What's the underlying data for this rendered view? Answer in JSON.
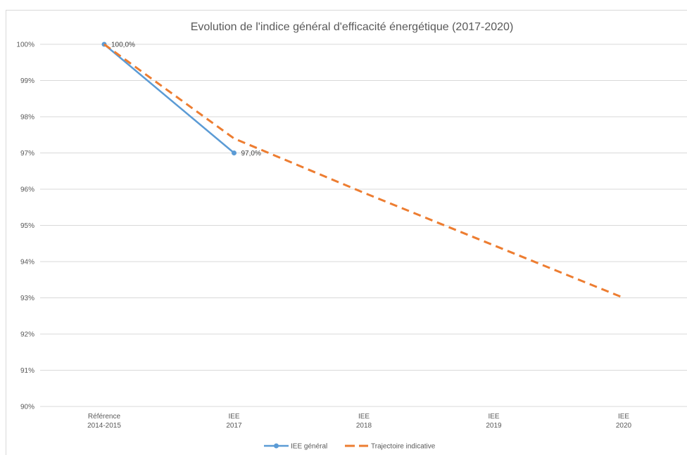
{
  "chart_data": {
    "type": "line",
    "title": "Evolution de l'indice général d'efficacité énergétique (2017-2020)",
    "categories": [
      [
        "Référence",
        "2014-2015"
      ],
      [
        "IEE",
        "2017"
      ],
      [
        "IEE",
        "2018"
      ],
      [
        "IEE",
        "2019"
      ],
      [
        "IEE",
        "2020"
      ]
    ],
    "ylim": [
      90,
      100
    ],
    "yticks": [
      {
        "value": 100,
        "label": "100%"
      },
      {
        "value": 99,
        "label": "99%"
      },
      {
        "value": 98,
        "label": "98%"
      },
      {
        "value": 97,
        "label": "97%"
      },
      {
        "value": 96,
        "label": "96%"
      },
      {
        "value": 95,
        "label": "95%"
      },
      {
        "value": 94,
        "label": "94%"
      },
      {
        "value": 93,
        "label": "93%"
      },
      {
        "value": 92,
        "label": "92%"
      },
      {
        "value": 91,
        "label": "91%"
      },
      {
        "value": 90,
        "label": "90%"
      }
    ],
    "grid": true,
    "legend_position": "bottom",
    "series": [
      {
        "name": "IEE général",
        "color": "#5b9bd5",
        "style": "solid-markers",
        "values": [
          100,
          97,
          null,
          null,
          null
        ],
        "labels": [
          "100,0%",
          "97,0%",
          null,
          null,
          null
        ]
      },
      {
        "name": "Trajectoire indicative",
        "color": "#ed7d31",
        "style": "dashed",
        "values": [
          100,
          97.4,
          95.9,
          94.45,
          93.0
        ],
        "labels": [
          null,
          null,
          null,
          null,
          null
        ]
      }
    ]
  }
}
